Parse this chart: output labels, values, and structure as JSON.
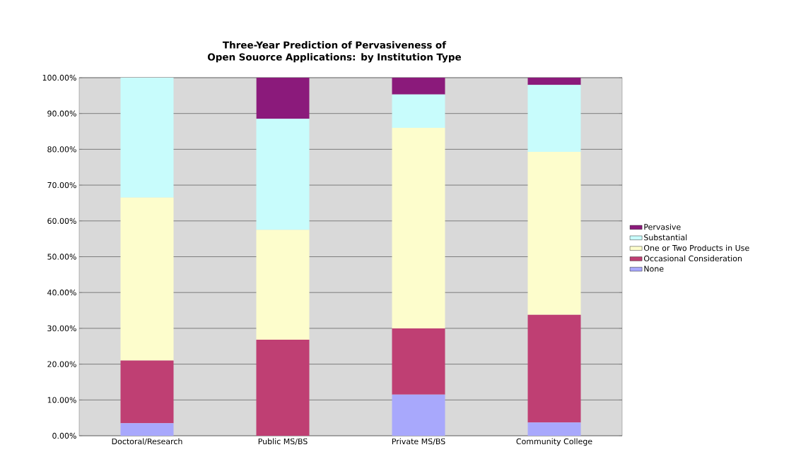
{
  "chart_data": {
    "type": "bar",
    "stacked": true,
    "title": "Three-Year Prediction of Pervasiveness of Open Souorce Applications: by Institution Type",
    "categories": [
      "Doctoral/Research",
      "Public MS/BS",
      "Private MS/BS",
      "Community College"
    ],
    "series": [
      {
        "name": "None",
        "color": "#a8a8fc",
        "values": [
          3.5,
          0,
          11.5,
          3.7
        ]
      },
      {
        "name": "Occasional Consideration",
        "color": "#bf3f73",
        "values": [
          17.5,
          26.8,
          18.5,
          30.1
        ]
      },
      {
        "name": "One or Two Products in Use",
        "color": "#fdfdcc",
        "values": [
          45.5,
          30.7,
          56,
          45.5
        ]
      },
      {
        "name": "Substantial",
        "color": "#c8fcfc",
        "values": [
          33.5,
          31,
          9.3,
          18.7
        ]
      },
      {
        "name": "Pervasive",
        "color": "#8b1a7b",
        "values": [
          0,
          11.5,
          4.7,
          2
        ]
      }
    ],
    "ylim": [
      0,
      100
    ],
    "yticks": [
      {
        "value": 0,
        "label": "0.00%"
      },
      {
        "value": 10,
        "label": "10.00%"
      },
      {
        "value": 20,
        "label": "20.00%"
      },
      {
        "value": 30,
        "label": "30.00%"
      },
      {
        "value": 40,
        "label": "40.00%"
      },
      {
        "value": 50,
        "label": "50.00%"
      },
      {
        "value": 60,
        "label": "60.00%"
      },
      {
        "value": 70,
        "label": "70.00%"
      },
      {
        "value": 80,
        "label": "80.00%"
      },
      {
        "value": 90,
        "label": "90.00%"
      },
      {
        "value": 100,
        "label": "100.00%"
      }
    ],
    "grid": "y",
    "legend": "right"
  }
}
